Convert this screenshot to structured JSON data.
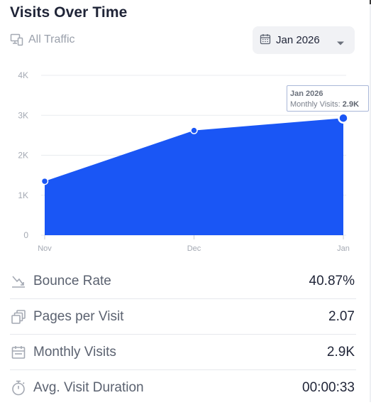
{
  "header": {
    "title": "Visits Over Time",
    "filter_label": "All Traffic",
    "date_selector": "Jan 2026"
  },
  "chart_data": {
    "type": "area",
    "categories": [
      "Nov",
      "Dec",
      "Jan"
    ],
    "series": [
      {
        "values": [
          1350,
          2620,
          2930
        ]
      }
    ],
    "ylim": [
      0,
      4000
    ],
    "yticks": [
      0,
      1000,
      2000,
      3000,
      4000
    ],
    "ytick_labels": [
      "0",
      "1K",
      "2K",
      "3K",
      "4K"
    ],
    "grid": true,
    "color": "#1a56f5",
    "tooltip": {
      "date": "Jan 2026",
      "label": "Monthly Visits:",
      "value": "2.9K"
    }
  },
  "metrics": [
    {
      "icon": "trend-down-icon",
      "label": "Bounce Rate",
      "value": "40.87%"
    },
    {
      "icon": "pages-icon",
      "label": "Pages per Visit",
      "value": "2.07"
    },
    {
      "icon": "calendar-icon",
      "label": "Monthly Visits",
      "value": "2.9K"
    },
    {
      "icon": "stopwatch-icon",
      "label": "Avg. Visit Duration",
      "value": "00:00:33"
    }
  ]
}
